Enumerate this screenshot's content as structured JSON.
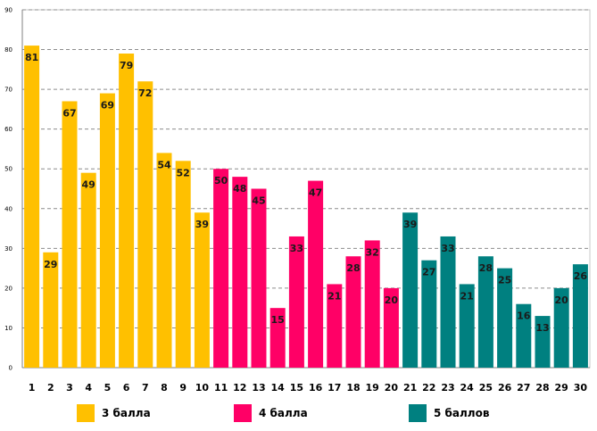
{
  "chart_data": {
    "type": "bar",
    "title": "",
    "xlabel": "",
    "ylabel": "",
    "ylim": [
      0,
      90
    ],
    "yticks": [
      0,
      10,
      20,
      30,
      40,
      50,
      60,
      70,
      80,
      90
    ],
    "grid": true,
    "categories": [
      "1",
      "2",
      "3",
      "4",
      "5",
      "6",
      "7",
      "8",
      "9",
      "10",
      "11",
      "12",
      "13",
      "14",
      "15",
      "16",
      "17",
      "18",
      "19",
      "20",
      "21",
      "22",
      "23",
      "24",
      "25",
      "26",
      "27",
      "28",
      "29",
      "30"
    ],
    "values": [
      81,
      29,
      67,
      49,
      69,
      79,
      72,
      54,
      52,
      39,
      50,
      48,
      45,
      15,
      33,
      47,
      21,
      28,
      32,
      20,
      39,
      27,
      33,
      21,
      28,
      25,
      16,
      13,
      20,
      26
    ],
    "series": [
      {
        "name": "3 балла",
        "color": "#FFC000",
        "start": 0,
        "end": 9
      },
      {
        "name": "4 балла",
        "color": "#FF0066",
        "start": 10,
        "end": 19
      },
      {
        "name": "5 баллов",
        "color": "#008080",
        "start": 20,
        "end": 29
      }
    ],
    "legend_position": "bottom"
  }
}
